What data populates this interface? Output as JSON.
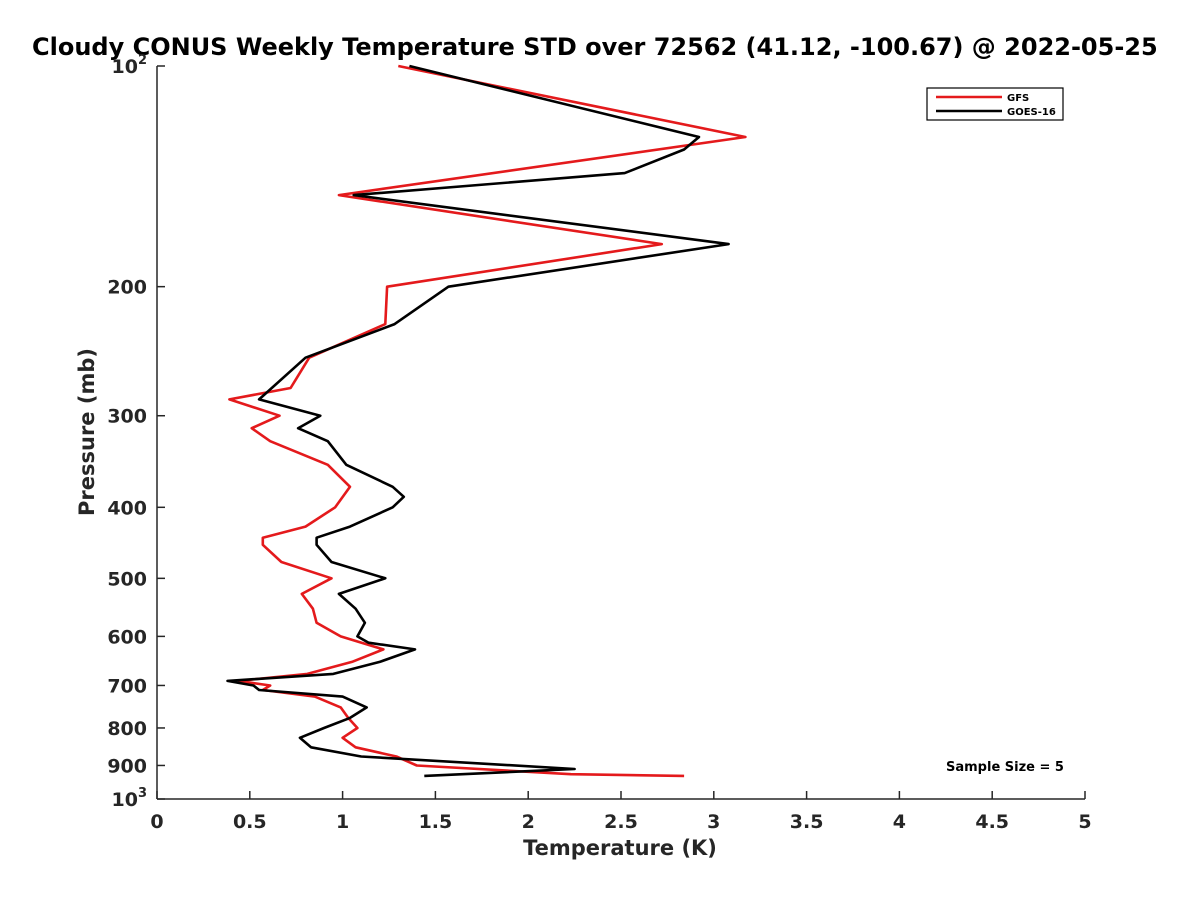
{
  "chart_data": {
    "type": "line",
    "title": "Cloudy CONUS Weekly Temperature STD over 72562 (41.12, -100.67) @ 2022-05-25",
    "xlabel": "Temperature (K)",
    "ylabel": "Pressure (mb)",
    "xlim": [
      0,
      5
    ],
    "ylim": [
      100,
      1000
    ],
    "y_scale": "log",
    "y_reversed": true,
    "grid": false,
    "x_ticks": [
      {
        "value": 0,
        "label": "0"
      },
      {
        "value": 0.5,
        "label": "0.5"
      },
      {
        "value": 1,
        "label": "1"
      },
      {
        "value": 1.5,
        "label": "1.5"
      },
      {
        "value": 2,
        "label": "2"
      },
      {
        "value": 2.5,
        "label": "2.5"
      },
      {
        "value": 3,
        "label": "3"
      },
      {
        "value": 3.5,
        "label": "3.5"
      },
      {
        "value": 4,
        "label": "4"
      },
      {
        "value": 4.5,
        "label": "4.5"
      },
      {
        "value": 5,
        "label": "5"
      }
    ],
    "y_ticks": [
      {
        "value": 100,
        "label": "10",
        "sup": "2"
      },
      {
        "value": 200,
        "label": "200"
      },
      {
        "value": 300,
        "label": "300"
      },
      {
        "value": 400,
        "label": "400"
      },
      {
        "value": 500,
        "label": "500"
      },
      {
        "value": 600,
        "label": "600"
      },
      {
        "value": 700,
        "label": "700"
      },
      {
        "value": 800,
        "label": "800"
      },
      {
        "value": 900,
        "label": "900"
      },
      {
        "value": 1000,
        "label": "10",
        "sup": "3"
      }
    ],
    "legend": {
      "position": "top-right"
    },
    "series": [
      {
        "name": "GFS",
        "color": "#e41a1c",
        "points": [
          [
            1.3,
            100
          ],
          [
            3.17,
            125
          ],
          [
            0.98,
            150
          ],
          [
            2.72,
            175
          ],
          [
            1.24,
            200
          ],
          [
            1.23,
            225
          ],
          [
            0.82,
            250
          ],
          [
            0.72,
            275
          ],
          [
            0.39,
            285
          ],
          [
            0.66,
            300
          ],
          [
            0.51,
            312
          ],
          [
            0.61,
            325
          ],
          [
            0.92,
            350
          ],
          [
            1.04,
            375
          ],
          [
            0.96,
            400
          ],
          [
            0.8,
            425
          ],
          [
            0.57,
            440
          ],
          [
            0.57,
            450
          ],
          [
            0.67,
            475
          ],
          [
            0.94,
            500
          ],
          [
            0.78,
            525
          ],
          [
            0.84,
            550
          ],
          [
            0.86,
            575
          ],
          [
            0.99,
            600
          ],
          [
            1.22,
            625
          ],
          [
            1.05,
            650
          ],
          [
            0.81,
            675
          ],
          [
            0.44,
            690
          ],
          [
            0.61,
            700
          ],
          [
            0.57,
            710
          ],
          [
            0.85,
            725
          ],
          [
            0.99,
            750
          ],
          [
            1.03,
            775
          ],
          [
            1.08,
            800
          ],
          [
            1.0,
            825
          ],
          [
            1.07,
            850
          ],
          [
            1.29,
            875
          ],
          [
            1.4,
            900
          ],
          [
            2.23,
            925
          ],
          [
            2.84,
            930
          ]
        ]
      },
      {
        "name": "GOES-16",
        "color": "#000000",
        "points": [
          [
            1.36,
            100
          ],
          [
            2.92,
            125
          ],
          [
            2.84,
            130
          ],
          [
            2.52,
            140
          ],
          [
            1.06,
            150
          ],
          [
            3.08,
            175
          ],
          [
            1.57,
            200
          ],
          [
            1.28,
            225
          ],
          [
            0.8,
            250
          ],
          [
            0.55,
            285
          ],
          [
            0.88,
            300
          ],
          [
            0.76,
            312
          ],
          [
            0.92,
            325
          ],
          [
            1.02,
            350
          ],
          [
            1.27,
            375
          ],
          [
            1.33,
            387
          ],
          [
            1.27,
            400
          ],
          [
            1.04,
            425
          ],
          [
            0.86,
            440
          ],
          [
            0.86,
            450
          ],
          [
            0.94,
            475
          ],
          [
            1.23,
            500
          ],
          [
            0.98,
            525
          ],
          [
            1.07,
            550
          ],
          [
            1.12,
            575
          ],
          [
            1.08,
            600
          ],
          [
            1.14,
            612
          ],
          [
            1.39,
            625
          ],
          [
            1.2,
            650
          ],
          [
            0.95,
            675
          ],
          [
            0.38,
            690
          ],
          [
            0.52,
            700
          ],
          [
            0.55,
            710
          ],
          [
            1.0,
            725
          ],
          [
            1.13,
            750
          ],
          [
            1.04,
            775
          ],
          [
            0.9,
            800
          ],
          [
            0.77,
            825
          ],
          [
            0.83,
            850
          ],
          [
            1.1,
            875
          ],
          [
            2.25,
            910
          ],
          [
            1.44,
            930
          ]
        ]
      }
    ],
    "annotations": [
      {
        "text": "Sample Size = 5"
      }
    ]
  }
}
